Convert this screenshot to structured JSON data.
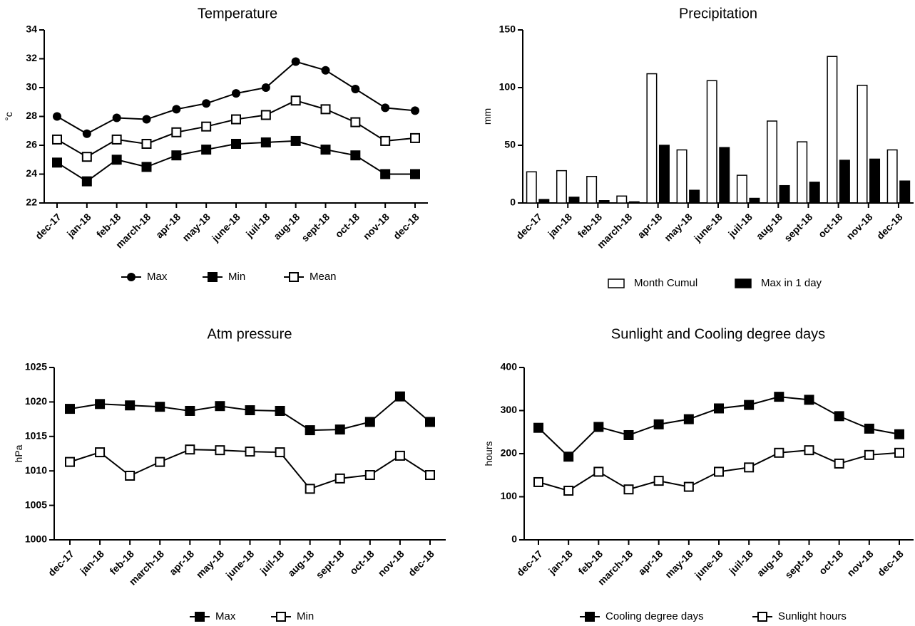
{
  "chart_data": [
    {
      "type": "line",
      "title": "Temperature",
      "y_label": "°c",
      "categories": [
        "dec-17",
        "jan-18",
        "feb-18",
        "march-18",
        "apr-18",
        "may-18",
        "june-18",
        "juil-18",
        "aug-18",
        "sept-18",
        "oct-18",
        "nov-18",
        "dec-18"
      ],
      "series": [
        {
          "name": "Max",
          "color": "#000000",
          "marker": "circle",
          "values": [
            28.0,
            26.8,
            27.9,
            27.8,
            28.5,
            28.9,
            29.6,
            30.0,
            31.8,
            31.2,
            29.9,
            28.6,
            28.4
          ]
        },
        {
          "name": "Min",
          "color": "#000000",
          "marker": "square",
          "values": [
            24.8,
            23.5,
            25.0,
            24.5,
            25.3,
            25.7,
            26.1,
            26.2,
            26.3,
            25.7,
            25.3,
            24.0,
            24.0
          ]
        },
        {
          "name": "Mean",
          "color": "#000000",
          "marker": "open-square",
          "values": [
            26.4,
            25.2,
            26.4,
            26.1,
            26.9,
            27.3,
            27.8,
            28.1,
            29.1,
            28.5,
            27.6,
            26.3,
            26.5
          ]
        }
      ],
      "ylim": [
        22,
        34
      ],
      "yticks": [
        22,
        24,
        26,
        28,
        30,
        32,
        34
      ]
    },
    {
      "type": "bar",
      "title": "Precipitation",
      "y_label": "mm",
      "categories": [
        "dec-17",
        "jan-18",
        "feb-18",
        "march-18",
        "apr-18",
        "may-18",
        "june-18",
        "juil-18",
        "aug-18",
        "sept-18",
        "oct-18",
        "nov-18",
        "dec-18"
      ],
      "series": [
        {
          "name": "Month Cumul",
          "color": "#ffffff",
          "values": [
            27,
            28,
            23,
            6,
            112,
            46,
            106,
            24,
            71,
            53,
            127,
            102,
            46
          ]
        },
        {
          "name": "Max in 1 day",
          "color": "#000000",
          "values": [
            3,
            5,
            2,
            1,
            50,
            11,
            48,
            4,
            15,
            18,
            37,
            38,
            19
          ]
        }
      ],
      "ylim": [
        0,
        150
      ],
      "yticks": [
        0,
        50,
        100,
        150
      ]
    },
    {
      "type": "line",
      "title": "Atm pressure",
      "y_label": "hPa",
      "categories": [
        "dec-17",
        "jan-18",
        "feb-18",
        "march-18",
        "apr-18",
        "may-18",
        "june-18",
        "juil-18",
        "aug-18",
        "sept-18",
        "oct-18",
        "nov-18",
        "dec-18"
      ],
      "series": [
        {
          "name": "Max",
          "color": "#000000",
          "marker": "square",
          "values": [
            1019.0,
            1019.7,
            1019.5,
            1019.3,
            1018.7,
            1019.4,
            1018.8,
            1018.7,
            1015.9,
            1016.0,
            1017.1,
            1020.8,
            1017.1
          ]
        },
        {
          "name": "Min",
          "color": "#000000",
          "marker": "open-square",
          "values": [
            1011.3,
            1012.7,
            1009.3,
            1011.3,
            1013.1,
            1013.0,
            1012.8,
            1012.7,
            1007.4,
            1008.9,
            1009.4,
            1012.2,
            1009.4
          ]
        }
      ],
      "ylim": [
        1000,
        1025
      ],
      "yticks": [
        1000,
        1005,
        1010,
        1015,
        1020,
        1025
      ]
    },
    {
      "type": "line",
      "title": "Sunlight and Cooling degree days",
      "y_label": "hours",
      "categories": [
        "dec-17",
        "jan-18",
        "feb-18",
        "march-18",
        "apr-18",
        "may-18",
        "june-18",
        "juil-18",
        "aug-18",
        "sept-18",
        "oct-18",
        "nov-18",
        "dec-18"
      ],
      "series": [
        {
          "name": "Cooling degree days",
          "color": "#000000",
          "marker": "square",
          "values": [
            260,
            193,
            262,
            243,
            268,
            280,
            305,
            313,
            332,
            325,
            287,
            258,
            245
          ]
        },
        {
          "name": "Sunlight hours",
          "color": "#000000",
          "marker": "open-square",
          "values": [
            134,
            114,
            158,
            117,
            137,
            123,
            158,
            168,
            202,
            208,
            177,
            197,
            202
          ]
        }
      ],
      "ylim": [
        0,
        400
      ],
      "yticks": [
        0,
        100,
        200,
        300,
        400
      ]
    }
  ]
}
